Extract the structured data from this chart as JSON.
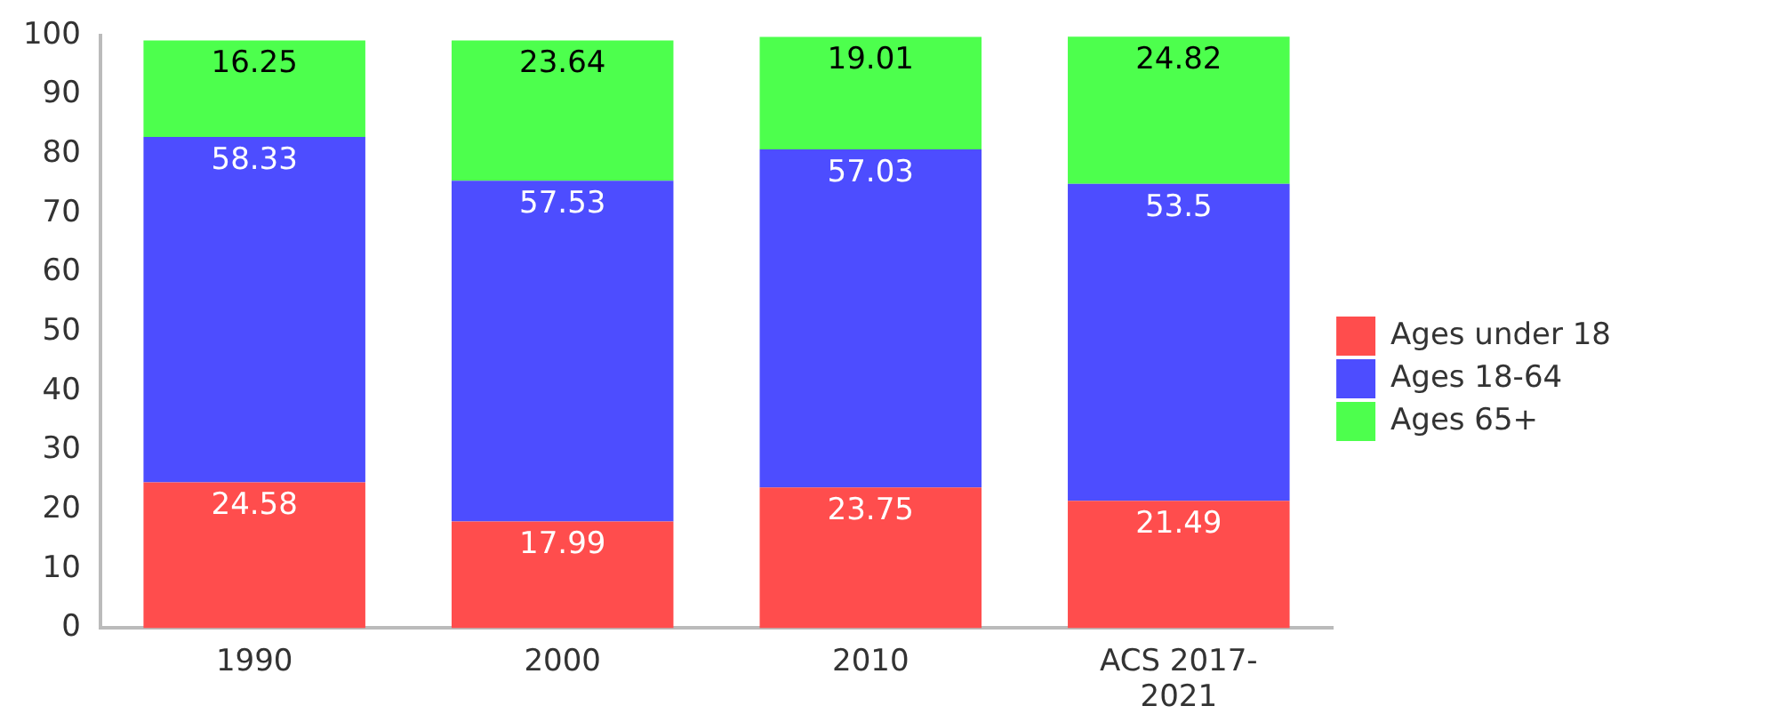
{
  "chart_data": {
    "type": "bar",
    "stacked": true,
    "categories": [
      "1990",
      "2000",
      "2010",
      "ACS 2017-2021"
    ],
    "series": [
      {
        "name": "Ages under 18",
        "color": "#ff4d4d",
        "values": [
          24.58,
          17.99,
          23.75,
          21.49
        ]
      },
      {
        "name": "Ages 18-64",
        "color": "#4d4dff",
        "values": [
          58.33,
          57.53,
          57.03,
          53.5
        ]
      },
      {
        "name": "Ages 65+",
        "color": "#4dff4d",
        "values": [
          16.25,
          23.64,
          19.01,
          24.82
        ]
      }
    ],
    "ylim": [
      0,
      100
    ],
    "yticks": [
      0,
      10,
      20,
      30,
      40,
      50,
      60,
      70,
      80,
      90,
      100
    ],
    "grid": false,
    "legend": "right",
    "data_labels": true
  }
}
